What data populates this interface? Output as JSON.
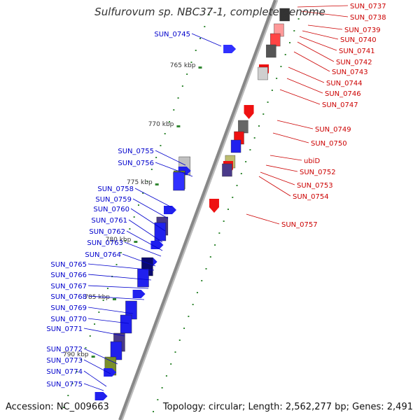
{
  "title": "Sulfurovum sp. NBC37-1, complete genome",
  "footer": {
    "accession": "Accession: NC_009663",
    "topology": "Topology: circular; Length: 2,562,277 bp; Genes: 2,491"
  },
  "colors": {
    "left_label": "#0000cc",
    "right_label": "#cc0000",
    "backbone": "#888888",
    "tick_green": "#338833",
    "kbp_text": "#333333"
  },
  "kbp_labels": [
    "765 kbp",
    "770 kbp",
    "775 kbp",
    "780 kbp",
    "785 kbp",
    "790 kbp"
  ],
  "left_genes": [
    "SUN_0745",
    "SUN_0755",
    "SUN_0756",
    "SUN_0758",
    "SUN_0759",
    "SUN_0760",
    "SUN_0761",
    "SUN_0762",
    "SUN_0763",
    "SUN_0764",
    "SUN_0765",
    "SUN_0766",
    "SUN_0767",
    "SUN_0768",
    "SUN_0769",
    "SUN_0770",
    "SUN_0771",
    "SUN_0772",
    "SUN_0773",
    "SUN_0774",
    "SUN_0775"
  ],
  "right_genes": [
    "SUN_0737",
    "SUN_0738",
    "SUN_0739",
    "SUN_0740",
    "SUN_0741",
    "SUN_0742",
    "SUN_0743",
    "SUN_0744",
    "SUN_0746",
    "SUN_0747",
    "SUN_0749",
    "SUN_0750",
    "ubiD",
    "SUN_0752",
    "SUN_0753",
    "SUN_0754",
    "SUN_0757"
  ]
}
